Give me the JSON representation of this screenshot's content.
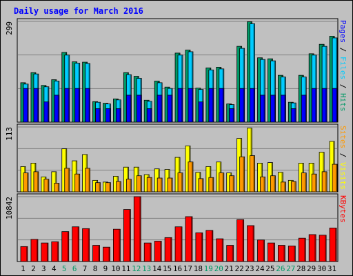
{
  "chart_data": {
    "type": "bar",
    "title": "Daily usage for March 2016",
    "categories": [
      "1",
      "2",
      "3",
      "4",
      "5",
      "6",
      "7",
      "8",
      "9",
      "10",
      "11",
      "12",
      "13",
      "14",
      "15",
      "16",
      "17",
      "18",
      "19",
      "20",
      "21",
      "22",
      "23",
      "24",
      "25",
      "26",
      "27",
      "28",
      "29",
      "30",
      "31"
    ],
    "weekend_days": [
      "5",
      "6",
      "12",
      "13",
      "19",
      "20",
      "26",
      "27"
    ],
    "panels": [
      {
        "id": "pages-files-hits",
        "max_label": "299",
        "ylim": [
          0,
          299
        ],
        "grid": true,
        "legend": "right",
        "legend_parts": [
          "Pages",
          "Files",
          "Hits"
        ],
        "series": [
          {
            "name": "Hits",
            "color": "#009966",
            "values": [
              117,
              147,
              109,
              126,
              207,
              179,
              178,
              61,
              56,
              69,
              147,
              136,
              65,
              122,
              104,
              205,
              214,
              101,
              161,
              163,
              54,
              225,
              298,
              191,
              188,
              139,
              59,
              139,
              203,
              231,
              255
            ]
          },
          {
            "name": "Files",
            "color": "#00ccff",
            "values": [
              113,
              143,
              105,
              122,
              199,
              175,
              174,
              59,
              54,
              66,
              141,
              130,
              62,
              117,
              100,
              199,
              209,
              97,
              155,
              158,
              52,
              219,
              292,
              186,
              182,
              134,
              57,
              134,
              199,
              225,
              250
            ]
          },
          {
            "name": "Pages",
            "color": "#0000ff",
            "values": [
              100,
              100,
              60,
              80,
              100,
              100,
              100,
              40,
              40,
              40,
              80,
              80,
              40,
              80,
              80,
              100,
              100,
              60,
              100,
              100,
              40,
              100,
              100,
              80,
              80,
              80,
              40,
              80,
              100,
              100,
              100
            ]
          }
        ]
      },
      {
        "id": "visits-sites",
        "max_label": "113",
        "ylim": [
          0,
          113
        ],
        "grid": true,
        "legend": "right",
        "legend_parts": [
          "Sites",
          "Visits"
        ],
        "series": [
          {
            "name": "Visits",
            "color": "#ffff00",
            "values": [
              44,
              50,
              26,
              35,
              75,
              54,
              65,
              20,
              17,
              27,
              43,
              43,
              30,
              40,
              39,
              60,
              80,
              34,
              44,
              52,
              33,
              93,
              111,
              50,
              51,
              34,
              20,
              50,
              50,
              69,
              88
            ]
          },
          {
            "name": "Sites",
            "color": "#ff9900",
            "values": [
              33,
              35,
              22,
              15,
              41,
              31,
              41,
              16,
              16,
              18,
              22,
              28,
              25,
              24,
              24,
              33,
              52,
              23,
              25,
              33,
              28,
              61,
              63,
              26,
              28,
              17,
              18,
              33,
              31,
              35,
              48
            ]
          }
        ]
      },
      {
        "id": "kbytes",
        "max_label": "10842",
        "ylim": [
          0,
          10842
        ],
        "grid": true,
        "legend": "right",
        "legend_parts": [
          "KBytes"
        ],
        "series": [
          {
            "name": "KBytes",
            "color": "#ff0000",
            "values": [
              2500,
              3700,
              3100,
              3300,
              5000,
              5800,
              5500,
              2700,
              2400,
              5400,
              8700,
              10842,
              3100,
              3400,
              4000,
              5800,
              7500,
              4800,
              5200,
              3800,
              2700,
              7000,
              6000,
              3600,
              3100,
              2700,
              2600,
              3900,
              4500,
              4400,
              5600
            ]
          }
        ]
      }
    ]
  }
}
